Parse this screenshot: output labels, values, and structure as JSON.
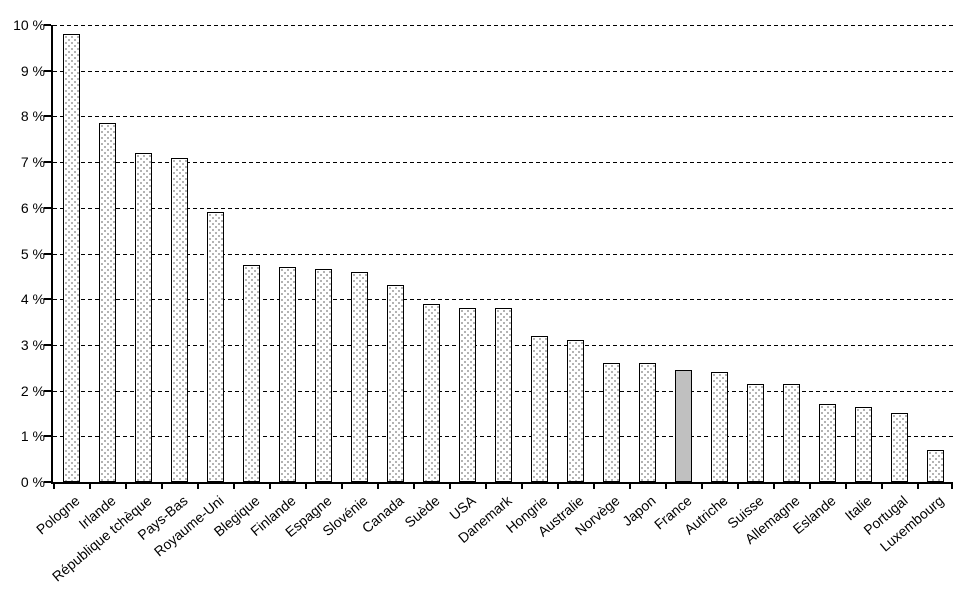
{
  "chart_data": {
    "type": "bar",
    "title": "",
    "xlabel": "",
    "ylabel": "",
    "categories": [
      "Pologne",
      "Irlande",
      "République tchèque",
      "Pays-Bas",
      "Royaume-Uni",
      "Blegique",
      "Finlande",
      "Espagne",
      "Slovénie",
      "Canada",
      "Suède",
      "USA",
      "Danemark",
      "Hongrie",
      "Australie",
      "Norvège",
      "Japon",
      "France",
      "Autriche",
      "Suisse",
      "Allemagne",
      "Eslande",
      "Italie",
      "Portugal",
      "Luxembourg"
    ],
    "values": [
      9.8,
      7.85,
      7.2,
      7.1,
      5.9,
      4.75,
      4.7,
      4.65,
      4.6,
      4.3,
      3.9,
      3.8,
      3.8,
      3.2,
      3.1,
      2.6,
      2.6,
      2.45,
      2.4,
      2.15,
      2.15,
      1.7,
      1.65,
      1.5,
      0.7
    ],
    "unit": "%",
    "ylim": [
      0,
      10
    ],
    "ytick_step": 1,
    "ytick_labels": [
      "0 %",
      "1 %",
      "2 %",
      "3 %",
      "4 %",
      "5 %",
      "6 %",
      "7 %",
      "8 %",
      "9 %",
      "10 %"
    ],
    "grid": "horizontal-dashed",
    "legend": "none",
    "highlight_category": "France",
    "colors": {
      "bar_fill": "#ffffff",
      "bar_pattern": "black-dots",
      "bar_border": "#000000",
      "highlight_fill": "#c0c0c0",
      "axis": "#000000",
      "background": "#ffffff",
      "text": "#000000"
    }
  }
}
